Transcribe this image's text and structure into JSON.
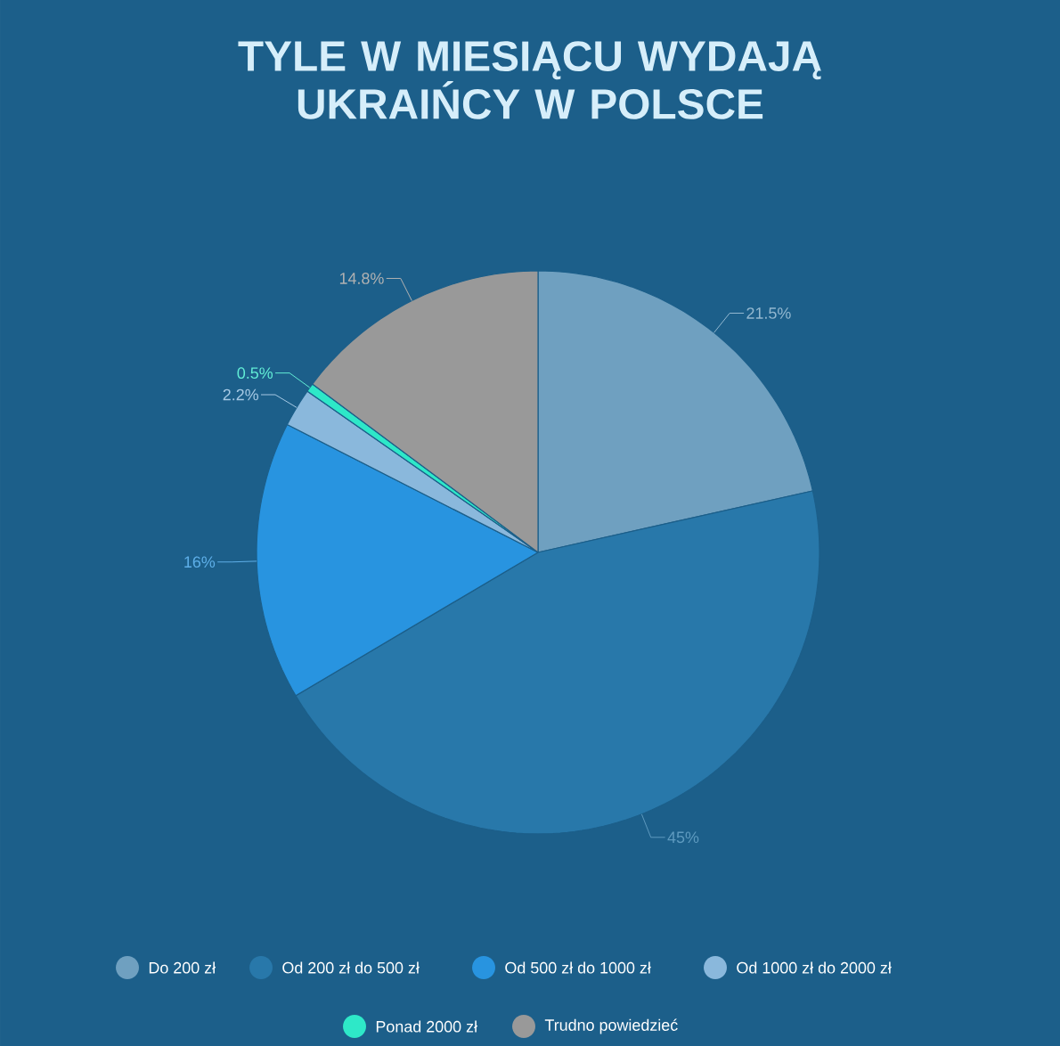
{
  "chart_data": {
    "type": "pie",
    "title": "TYLE W MIESIĄCU WYDAJĄ UKRAIŃCY W POLSCE",
    "categories": [
      "Do 200 zł",
      "Od 200 zł do 500 zł",
      "Od 500 zł do 1000 zł",
      "Od 1000 zł do 2000 zł",
      "Ponad 2000 zł",
      "Trudno powiedzieć"
    ],
    "values": [
      21.5,
      45,
      16,
      2.2,
      0.5,
      14.8
    ],
    "value_labels": [
      "21.5%",
      "45%",
      "16%",
      "2.2%",
      "0.5%",
      "14.8%"
    ],
    "colors": [
      "#6fa0c0",
      "#2878aa",
      "#2894e0",
      "#8ab8dc",
      "#2ee8c8",
      "#999999"
    ],
    "legend": "bottom"
  }
}
